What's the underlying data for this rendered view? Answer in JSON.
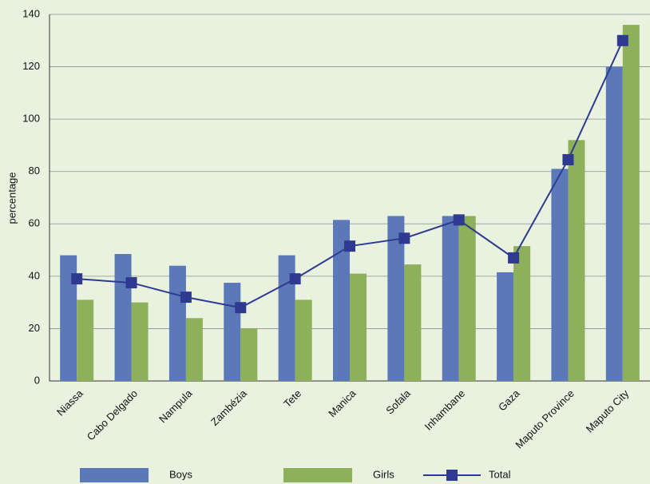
{
  "chart_data": {
    "type": "bar",
    "y_label": "percentage",
    "categories": [
      "Niassa",
      "Cabo Delgado",
      "Nampula",
      "Zambézia",
      "Tete",
      "Manica",
      "Sofala",
      "Inhambane",
      "Gaza",
      "Maputo Province",
      "Maputo City"
    ],
    "series": [
      {
        "name": "Boys",
        "type": "bar",
        "color": "#5b78b8",
        "values": [
          48,
          48.5,
          44,
          37.5,
          48,
          61.5,
          63,
          63,
          41.5,
          81,
          120
        ]
      },
      {
        "name": "Girls",
        "type": "bar",
        "color": "#8db05b",
        "values": [
          31,
          30,
          24,
          20,
          31,
          41,
          44.5,
          63,
          51.5,
          92,
          136
        ]
      },
      {
        "name": "Total",
        "type": "line",
        "color": "#2e3a8f",
        "values": [
          39,
          37.5,
          32,
          28,
          39,
          51.5,
          54.5,
          61.5,
          47,
          84.5,
          130
        ]
      }
    ],
    "ylim": [
      0,
      140
    ],
    "yticks": [
      0,
      20,
      40,
      60,
      80,
      100,
      120,
      140
    ],
    "grid": true
  }
}
